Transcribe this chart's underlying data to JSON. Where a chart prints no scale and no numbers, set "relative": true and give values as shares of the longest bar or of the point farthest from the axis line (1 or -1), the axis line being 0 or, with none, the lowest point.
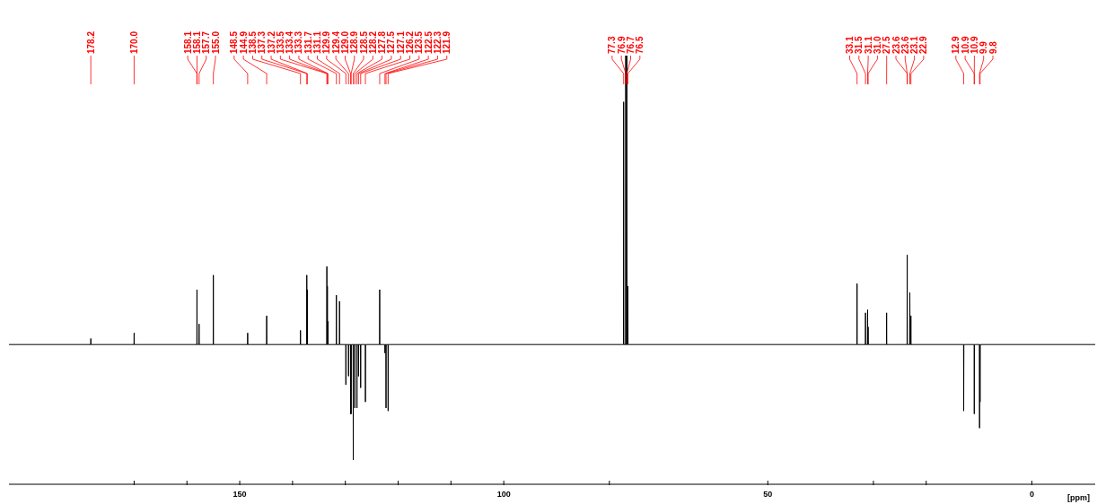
{
  "chart_data": {
    "type": "line",
    "relative": true,
    "xlabel": "[ppm]",
    "xlim": [
      193.7,
      -12
    ],
    "xticks": [
      {
        "value": 170,
        "label": null
      },
      {
        "value": 160,
        "label": null
      },
      150,
      {
        "value": 140,
        "label": null
      },
      {
        "value": 130,
        "label": null
      },
      {
        "value": 120,
        "label": null
      },
      {
        "value": 110,
        "label": null
      },
      100,
      {
        "value": 80,
        "label": null
      },
      50,
      {
        "value": 30,
        "label": null
      },
      {
        "value": 20,
        "label": null
      },
      0
    ],
    "series": [
      {
        "color": "#000000",
        "x": [
          193.7,
          178.23,
          178.2,
          178.17,
          170.03,
          170.0,
          169.97,
          158.13,
          158.1,
          158.07,
          157.73,
          157.7,
          157.67,
          155.03,
          155.0,
          154.97,
          148.53,
          148.5,
          148.47,
          144.93,
          144.9,
          144.87,
          138.53,
          138.5,
          138.47,
          137.33,
          137.3,
          137.27,
          137.23,
          137.2,
          137.17,
          133.53,
          133.5,
          133.47,
          133.43,
          133.4,
          133.37,
          133.33,
          133.3,
          133.27,
          131.73,
          131.7,
          131.67,
          131.13,
          131.1,
          131.07,
          129.93,
          129.9,
          129.87,
          129.43,
          129.4,
          129.37,
          129.03,
          129.0,
          128.97,
          128.93,
          128.9,
          128.87,
          128.53,
          128.5,
          128.47,
          128.23,
          128.2,
          128.17,
          127.83,
          127.8,
          127.77,
          127.53,
          127.5,
          127.47,
          127.13,
          127.1,
          127.07,
          126.23,
          126.2,
          126.17,
          123.53,
          123.5,
          123.47,
          122.53,
          122.5,
          122.47,
          122.33,
          122.3,
          122.27,
          121.93,
          121.9,
          121.87,
          77.33,
          77.3,
          77.27,
          76.93,
          76.9,
          76.87,
          76.73,
          76.7,
          76.67,
          76.53,
          76.5,
          76.47,
          33.13,
          33.1,
          33.07,
          31.53,
          31.5,
          31.47,
          31.13,
          31.1,
          31.07,
          31.03,
          31.0,
          30.97,
          27.53,
          27.5,
          27.47,
          23.63,
          23.6,
          23.57,
          23.13,
          23.1,
          23.07,
          22.93,
          22.9,
          22.87,
          12.93,
          12.9,
          12.87,
          10.93,
          10.9,
          10.87,
          9.93,
          9.9,
          9.87,
          9.83,
          9.8,
          9.77,
          -12
        ],
        "values": [
          0.326,
          0.326,
          0.34,
          0.326,
          0.326,
          0.353,
          0.326,
          0.326,
          0.454,
          0.326,
          0.326,
          0.374,
          0.326,
          0.326,
          0.488,
          0.326,
          0.326,
          0.353,
          0.326,
          0.326,
          0.393,
          0.326,
          0.326,
          0.359,
          0.326,
          0.326,
          0.488,
          0.326,
          0.326,
          0.454,
          0.326,
          0.326,
          0.508,
          0.326,
          0.326,
          0.462,
          0.326,
          0.326,
          0.38,
          0.326,
          0.326,
          0.441,
          0.326,
          0.326,
          0.427,
          0.326,
          0.326,
          0.232,
          0.326,
          0.326,
          0.252,
          0.326,
          0.326,
          0.164,
          0.326,
          0.326,
          0.164,
          0.326,
          0.326,
          0.057,
          0.326,
          0.326,
          0.178,
          0.326,
          0.326,
          0.178,
          0.326,
          0.326,
          0.252,
          0.326,
          0.326,
          0.225,
          0.326,
          0.326,
          0.192,
          0.326,
          0.326,
          0.454,
          0.326,
          0.326,
          0.306,
          0.326,
          0.326,
          0.178,
          0.326,
          0.326,
          0.171,
          0.326,
          0.326,
          0.892,
          0.326,
          0.326,
          1,
          0.326,
          0.326,
          1,
          0.326,
          0.326,
          0.462,
          0.326,
          0.326,
          0.468,
          0.326,
          0.326,
          0.4,
          0.326,
          0.326,
          0.407,
          0.326,
          0.326,
          0.367,
          0.326,
          0.326,
          0.4,
          0.326,
          0.326,
          0.535,
          0.326,
          0.326,
          0.447,
          0.326,
          0.326,
          0.393,
          0.326,
          0.326,
          0.171,
          0.326,
          0.326,
          0.164,
          0.326,
          0.326,
          0.131,
          0.326,
          0.326,
          0.192,
          0.326,
          0.326
        ]
      }
    ],
    "annotations": [
      {
        "text": "178.2",
        "x": 178.2
      },
      {
        "text": "170.0",
        "x": 170.0
      },
      {
        "text": "158.1",
        "x": 158.1
      },
      {
        "text": "158.1",
        "x": 158.1
      },
      {
        "text": "157.7",
        "x": 157.7
      },
      {
        "text": "155.0",
        "x": 155.0
      },
      {
        "text": "148.5",
        "x": 148.5
      },
      {
        "text": "144.9",
        "x": 144.9
      },
      {
        "text": "138.5",
        "x": 138.5
      },
      {
        "text": "137.3",
        "x": 137.3
      },
      {
        "text": "137.2",
        "x": 137.2
      },
      {
        "text": "133.5",
        "x": 133.5
      },
      {
        "text": "133.4",
        "x": 133.4
      },
      {
        "text": "133.3",
        "x": 133.3
      },
      {
        "text": "131.7",
        "x": 131.7
      },
      {
        "text": "131.1",
        "x": 131.1
      },
      {
        "text": "129.9",
        "x": 129.9
      },
      {
        "text": "129.4",
        "x": 129.4
      },
      {
        "text": "129.0",
        "x": 129.0
      },
      {
        "text": "128.9",
        "x": 128.9
      },
      {
        "text": "128.5",
        "x": 128.5
      },
      {
        "text": "128.2",
        "x": 128.2
      },
      {
        "text": "127.8",
        "x": 127.8
      },
      {
        "text": "127.5",
        "x": 127.5
      },
      {
        "text": "127.1",
        "x": 127.1
      },
      {
        "text": "126.2",
        "x": 126.2
      },
      {
        "text": "123.5",
        "x": 123.5
      },
      {
        "text": "122.5",
        "x": 122.5
      },
      {
        "text": "122.3",
        "x": 122.3
      },
      {
        "text": "121.9",
        "x": 121.9
      },
      {
        "text": "77.3",
        "x": 77.3
      },
      {
        "text": "76.9",
        "x": 76.9
      },
      {
        "text": "76.7",
        "x": 76.7
      },
      {
        "text": "76.5",
        "x": 76.5
      },
      {
        "text": "33.1",
        "x": 33.1
      },
      {
        "text": "31.5",
        "x": 31.5
      },
      {
        "text": "31.1",
        "x": 31.1
      },
      {
        "text": "31.0",
        "x": 31.0
      },
      {
        "text": "27.5",
        "x": 27.5
      },
      {
        "text": "23.6",
        "x": 23.6
      },
      {
        "text": "23.6",
        "x": 23.6
      },
      {
        "text": "23.1",
        "x": 23.1
      },
      {
        "text": "22.9",
        "x": 22.9
      },
      {
        "text": "12.9",
        "x": 12.9
      },
      {
        "text": "10.9",
        "x": 10.9
      },
      {
        "text": "10.9",
        "x": 10.9
      },
      {
        "text": "9.9",
        "x": 9.9
      },
      {
        "text": "9.8",
        "x": 9.8
      }
    ]
  }
}
